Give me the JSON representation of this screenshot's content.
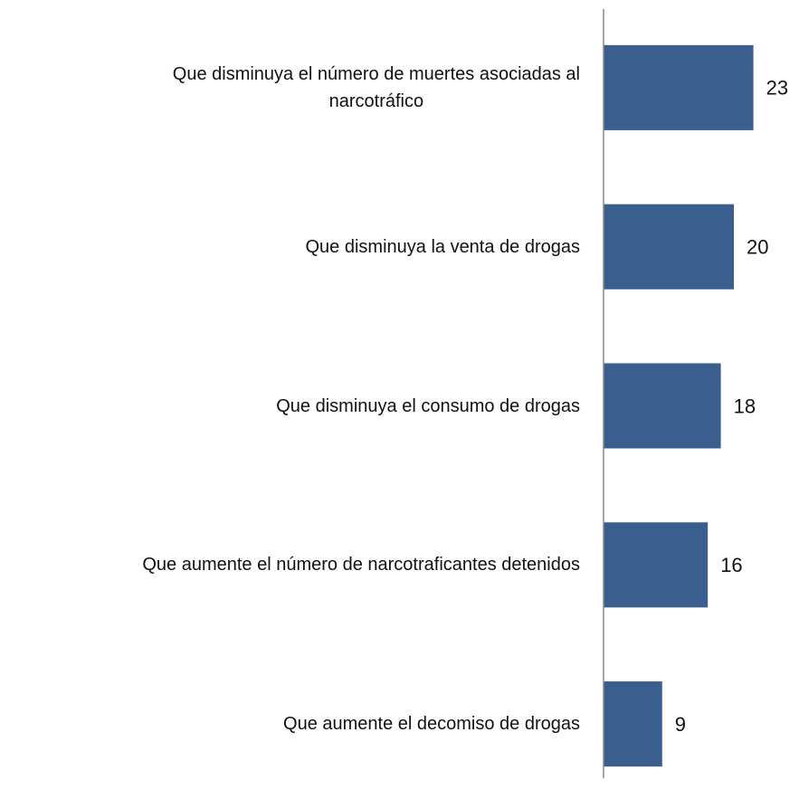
{
  "chart_data": {
    "type": "bar",
    "orientation": "horizontal",
    "categories": [
      "Que disminuya el número de muertes asociadas al\nnarcotráfico",
      "Que disminuya la venta de drogas",
      "Que disminuya el consumo de drogas",
      "Que aumente el número de narcotraficantes detenidos",
      "Que aumente el decomiso de drogas"
    ],
    "values": [
      23,
      20,
      18,
      16,
      9
    ],
    "color": "#3a5f8f",
    "xlim": [
      0,
      30
    ]
  }
}
